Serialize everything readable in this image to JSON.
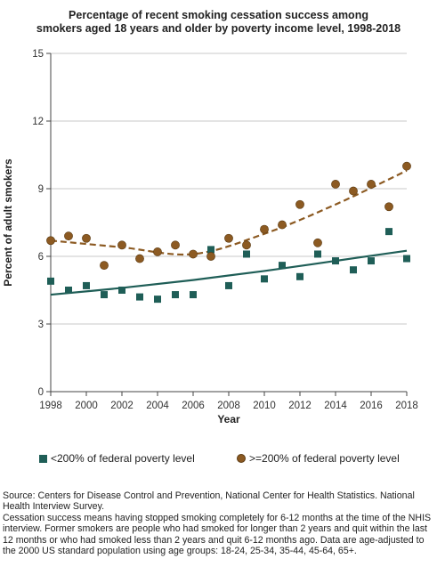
{
  "title_lines": [
    "Percentage of recent smoking cessation success among",
    "smokers aged 18 years and older by poverty income level, 1998-2018"
  ],
  "legend": {
    "low": "<200% of federal poverty level",
    "high": ">=200% of federal poverty level"
  },
  "footnote": {
    "source": "Source: Centers for Disease Control and Prevention, National Center for Health Statistics. National Health Interview Survey.",
    "note": "Cessation success means having stopped smoking completely for 6-12 months at the time of the NHIS interview. Former smokers are people who had smoked for longer than 2 years and quit within the last 12 months or who had smoked less than 2 years and quit 6-12 months ago. Data are age-adjusted to the 2000 US standard population using age groups: 18-24, 25-34, 35-44, 45-64, 65+."
  },
  "chart_data": {
    "type": "scatter",
    "title": "Percentage of recent smoking cessation success among smokers aged 18 years and older by poverty income level, 1998-2018",
    "xlabel": "Year",
    "ylabel": "Percent of adult smokers",
    "xlim": [
      1998,
      2018
    ],
    "ylim": [
      0,
      15
    ],
    "xticks": [
      "1998",
      "2000",
      "2002",
      "2004",
      "2006",
      "2008",
      "2010",
      "2012",
      "2014",
      "2016",
      "2018"
    ],
    "yticks": [
      "0",
      "3",
      "6",
      "9",
      "12",
      "15"
    ],
    "grid": "horizontal",
    "legend_position": "bottom",
    "x": [
      1998,
      1999,
      2000,
      2001,
      2002,
      2003,
      2004,
      2005,
      2006,
      2007,
      2008,
      2009,
      2010,
      2011,
      2012,
      2013,
      2014,
      2015,
      2016,
      2017,
      2018
    ],
    "series": [
      {
        "name": "<200% of federal poverty level",
        "marker": "square",
        "color": "#1f5e57",
        "values": [
          4.9,
          4.5,
          4.7,
          4.3,
          4.5,
          4.2,
          4.1,
          4.3,
          4.3,
          6.3,
          4.7,
          6.1,
          5.0,
          5.6,
          5.1,
          6.1,
          5.8,
          5.4,
          5.8,
          7.1,
          5.9
        ],
        "trend": {
          "style": "solid",
          "color": "#1f5e57",
          "x": [
            1998,
            2002,
            2006,
            2010,
            2014,
            2018
          ],
          "values": [
            4.3,
            4.6,
            4.95,
            5.35,
            5.8,
            6.25
          ]
        }
      },
      {
        "name": ">=200% of federal poverty level",
        "marker": "circle",
        "color": "#8c5a22",
        "values": [
          6.7,
          6.9,
          6.8,
          5.6,
          6.5,
          5.9,
          6.2,
          6.5,
          6.1,
          6.0,
          6.8,
          6.5,
          7.2,
          7.4,
          8.3,
          6.6,
          9.2,
          8.9,
          9.2,
          8.2,
          10.0
        ],
        "trend": {
          "style": "dashed",
          "color": "#8c5a22",
          "x": [
            1998,
            2002,
            2006,
            2010,
            2014,
            2018
          ],
          "values": [
            6.7,
            6.4,
            6.1,
            7.0,
            8.3,
            9.8
          ]
        }
      }
    ]
  }
}
